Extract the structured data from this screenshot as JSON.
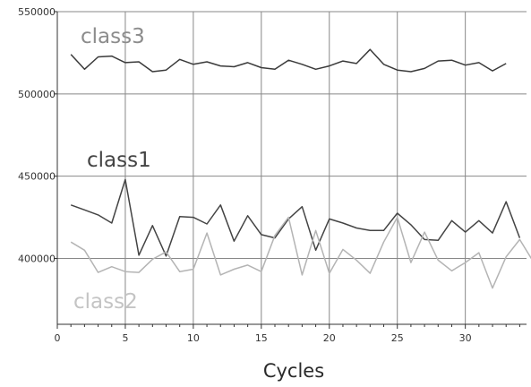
{
  "chart_data": {
    "type": "line",
    "title": "",
    "xlabel": "Cycles",
    "ylabel": "",
    "xlim": [
      0,
      34.5
    ],
    "ylim": [
      360000,
      550000
    ],
    "x_ticks": [
      0,
      5,
      10,
      15,
      20,
      25,
      30
    ],
    "y_ticks": [
      400000,
      450000,
      500000,
      550000
    ],
    "x_tick_labels": [
      "0",
      "5",
      "10",
      "15",
      "20",
      "25",
      "30"
    ],
    "y_tick_labels": [
      "400000",
      "450000",
      "500000",
      "550000"
    ],
    "grid": true,
    "legend": "none",
    "x": [
      1,
      2,
      3,
      4,
      5,
      6,
      7,
      8,
      9,
      10,
      11,
      12,
      13,
      14,
      15,
      16,
      17,
      18,
      19,
      20,
      21,
      22,
      23,
      24,
      25,
      26,
      27,
      28,
      29,
      30,
      31,
      32,
      33,
      34,
      35
    ],
    "series": [
      {
        "name": "class3",
        "color": "#3a3a3a",
        "values": [
          524000,
          515000,
          522500,
          523000,
          519000,
          519500,
          513500,
          514500,
          521000,
          518000,
          519500,
          517000,
          516500,
          519000,
          516000,
          515000,
          520500,
          518000,
          515000,
          517000,
          520000,
          518500,
          527000,
          518000,
          514500,
          513500,
          515500,
          520000,
          520500,
          517500,
          519000,
          514000,
          518500,
          null,
          null
        ]
      },
      {
        "name": "class1",
        "color": "#444444",
        "values": [
          432500,
          429500,
          426500,
          421500,
          448000,
          402000,
          420000,
          401500,
          425500,
          425000,
          421000,
          432500,
          410500,
          426000,
          414500,
          412500,
          424000,
          431500,
          405000,
          424000,
          421500,
          418500,
          417000,
          417000,
          427500,
          420500,
          411500,
          411000,
          423000,
          416000,
          423000,
          415500,
          434500,
          412500,
          null
        ]
      },
      {
        "name": "class2",
        "color": "#b4b4b4",
        "values": [
          410000,
          405000,
          391500,
          395000,
          392000,
          391500,
          399500,
          404000,
          392000,
          393500,
          415500,
          390000,
          393500,
          396000,
          392000,
          414000,
          425000,
          390000,
          417000,
          391000,
          405500,
          399000,
          391000,
          410000,
          425000,
          397500,
          416000,
          399000,
          392500,
          397500,
          403500,
          382000,
          401000,
          411500,
          398000
        ]
      }
    ]
  }
}
